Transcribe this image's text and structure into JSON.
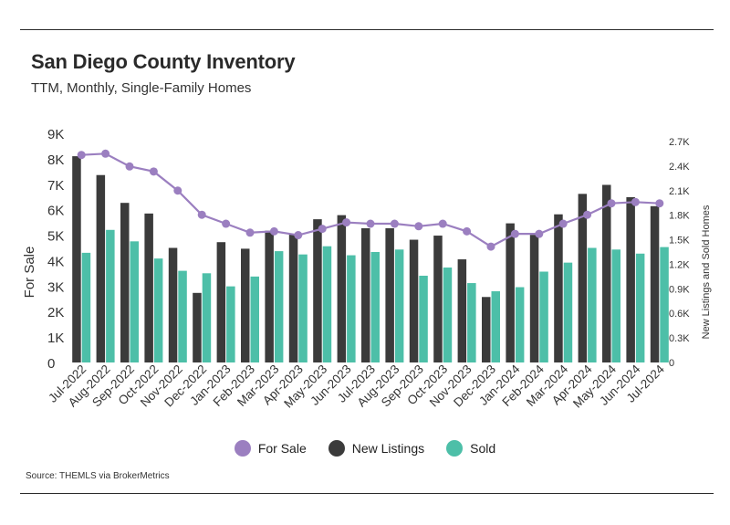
{
  "header": {
    "title": "San Diego County Inventory",
    "subtitle": "TTM, Monthly, Single-Family Homes"
  },
  "footer": {
    "source": "Source:  THEMLS via BrokerMetrics"
  },
  "colors": {
    "for_sale": "#9b7fc0",
    "new_listings": "#3b3b3b",
    "sold": "#4dbfa8"
  },
  "chart_data": {
    "type": "bar",
    "title": "San Diego County Inventory",
    "subtitle": "TTM, Monthly, Single-Family Homes",
    "ylabel_left": "For Sale",
    "ylabel_right": "New Listings and Sold Homes",
    "categories": [
      "Jul-2022",
      "Aug-2022",
      "Sep-2022",
      "Oct-2022",
      "Nov-2022",
      "Dec-2022",
      "Jan-2023",
      "Feb-2023",
      "Mar-2023",
      "Apr-2023",
      "May-2023",
      "Jun-2023",
      "Jul-2023",
      "Aug-2023",
      "Sep-2023",
      "Oct-2023",
      "Nov-2023",
      "Dec-2023",
      "Jan-2024",
      "Feb-2024",
      "Mar-2024",
      "Apr-2024",
      "May-2024",
      "Jun-2024",
      "Jul-2024"
    ],
    "left_axis": {
      "ylim": [
        0,
        9000
      ],
      "ticks": [
        0,
        1000,
        2000,
        3000,
        4000,
        5000,
        6000,
        7000,
        8000,
        9000
      ],
      "tick_labels": [
        "0",
        "1K",
        "2K",
        "3K",
        "4K",
        "5K",
        "6K",
        "7K",
        "8K",
        "9K"
      ]
    },
    "right_axis": {
      "ylim": [
        0,
        2800
      ],
      "ticks": [
        0,
        300,
        600,
        900,
        1200,
        1500,
        1800,
        2100,
        2400,
        2700
      ],
      "tick_labels": [
        "0",
        "0.3K",
        "0.6K",
        "0.9K",
        "1.2K",
        "1.5K",
        "1.8K",
        "2.1K",
        "2.4K",
        "2.7K"
      ]
    },
    "series": [
      {
        "name": "For Sale",
        "type": "line",
        "axis": "left",
        "values": [
          8150,
          8200,
          7700,
          7500,
          6750,
          5800,
          5450,
          5100,
          5150,
          5000,
          5250,
          5500,
          5450,
          5450,
          5350,
          5450,
          5150,
          4550,
          5050,
          5050,
          5450,
          5800,
          6250,
          6300,
          6250
        ]
      },
      {
        "name": "New Listings",
        "type": "bar",
        "axis": "right",
        "values": [
          2520,
          2290,
          1950,
          1820,
          1400,
          850,
          1470,
          1390,
          1610,
          1570,
          1750,
          1800,
          1640,
          1640,
          1500,
          1550,
          1260,
          800,
          1700,
          1560,
          1810,
          2060,
          2170,
          2020,
          1910
        ]
      },
      {
        "name": "Sold",
        "type": "bar",
        "axis": "right",
        "values": [
          1340,
          1620,
          1480,
          1270,
          1120,
          1090,
          930,
          1050,
          1360,
          1320,
          1420,
          1310,
          1350,
          1380,
          1060,
          1160,
          970,
          870,
          920,
          1110,
          1220,
          1400,
          1380,
          1330,
          1410
        ]
      }
    ],
    "legend": {
      "position": "bottom"
    },
    "grid": false
  }
}
